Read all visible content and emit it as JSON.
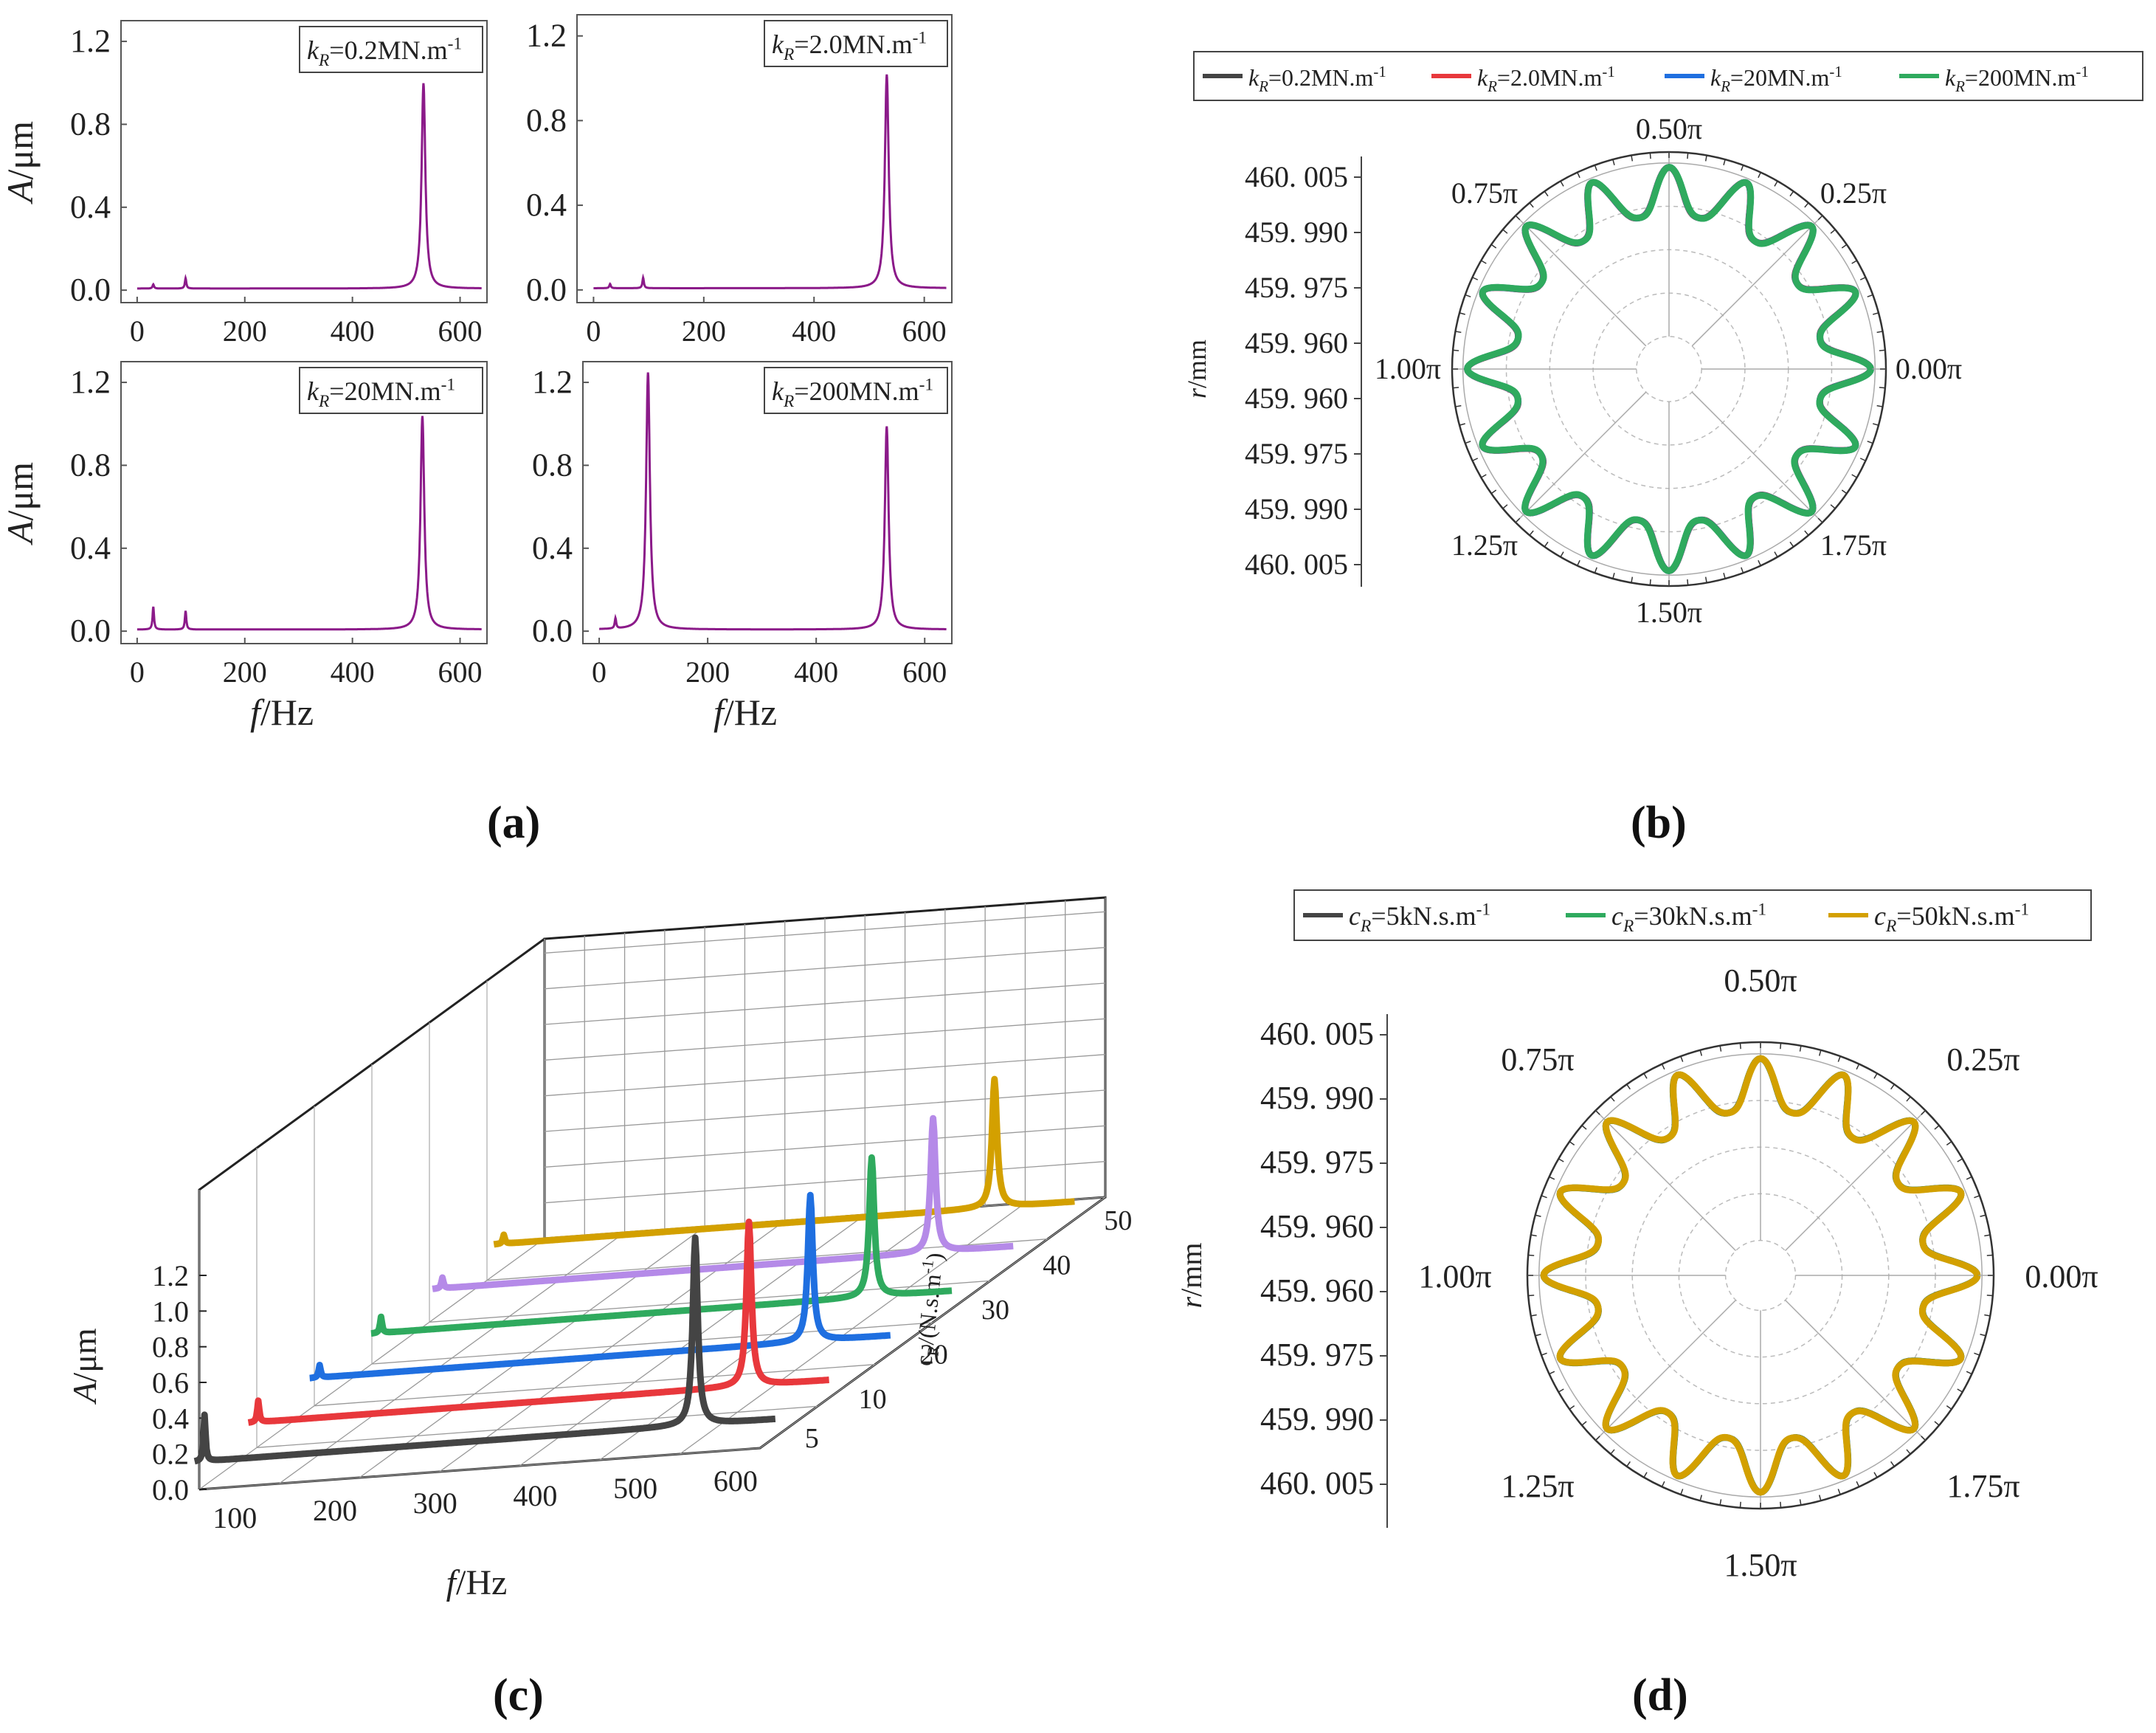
{
  "panels": {
    "a": "(a)",
    "b": "(b)",
    "c": "(c)",
    "d": "(d)"
  },
  "colors": {
    "purple": "#8B1A89",
    "black": "#444444",
    "red": "#E8383C",
    "blue": "#1F6FE0",
    "green": "#2FAA5E",
    "lilac": "#B58AE8",
    "gold": "#D3A000"
  },
  "chart_data": [
    {
      "id": "a1",
      "type": "line",
      "legend": "k_R=0.2MN.m^-1",
      "leg_sub": "R",
      "leg_main": "=0.2MN.m",
      "ylabel": "A/μm",
      "xlabel": "",
      "xlim": [
        -30,
        650
      ],
      "ylim": [
        -0.06,
        1.3
      ],
      "xticks": [
        0,
        200,
        400,
        600
      ],
      "yticks": [
        0.0,
        0.4,
        0.8,
        1.2
      ],
      "ytick_labels": [
        "0.0",
        "0.4",
        "0.8",
        "1.2"
      ],
      "peaks": [
        {
          "f": 30,
          "a": 0.02
        },
        {
          "f": 90,
          "a": 0.05
        },
        {
          "f": 532,
          "a": 0.99
        }
      ]
    },
    {
      "id": "a2",
      "type": "line",
      "legend": "k_R=2.0MN.m^-1",
      "leg_sub": "R",
      "leg_main": "=2.0MN.m",
      "ylabel": "",
      "xlabel": "",
      "xlim": [
        -30,
        650
      ],
      "ylim": [
        -0.06,
        1.3
      ],
      "xticks": [
        0,
        200,
        400,
        600
      ],
      "yticks": [
        0.0,
        0.4,
        0.8,
        1.2
      ],
      "ytick_labels": [
        "0.0",
        "0.4",
        "0.8",
        "1.2"
      ],
      "peaks": [
        {
          "f": 30,
          "a": 0.02
        },
        {
          "f": 90,
          "a": 0.05
        },
        {
          "f": 532,
          "a": 1.01
        }
      ]
    },
    {
      "id": "a3",
      "type": "line",
      "legend": "k_R=20MN.m^-1",
      "leg_sub": "R",
      "leg_main": "=20MN.m",
      "ylabel": "A/μm",
      "xlabel": "f/Hz",
      "xlim": [
        -30,
        650
      ],
      "ylim": [
        -0.06,
        1.3
      ],
      "xticks": [
        0,
        200,
        400,
        600
      ],
      "yticks": [
        0.0,
        0.4,
        0.8,
        1.2
      ],
      "ytick_labels": [
        "0.0",
        "0.4",
        "0.8",
        "1.2"
      ],
      "peaks": [
        {
          "f": 30,
          "a": 0.11
        },
        {
          "f": 90,
          "a": 0.09
        },
        {
          "f": 530,
          "a": 1.03
        }
      ]
    },
    {
      "id": "a4",
      "type": "line",
      "legend": "k_R=200MN.m^-1",
      "leg_sub": "R",
      "leg_main": "=200MN.m",
      "ylabel": "",
      "xlabel": "f/Hz",
      "xlim": [
        -30,
        650
      ],
      "ylim": [
        -0.06,
        1.3
      ],
      "xticks": [
        0,
        200,
        400,
        600
      ],
      "yticks": [
        0.0,
        0.4,
        0.8,
        1.2
      ],
      "ytick_labels": [
        "0.0",
        "0.4",
        "0.8",
        "1.2"
      ],
      "peaks": [
        {
          "f": 30,
          "a": 0.05
        },
        {
          "f": 90,
          "a": 1.24
        },
        {
          "f": 530,
          "a": 0.98
        }
      ]
    },
    {
      "id": "b",
      "type": "polar",
      "ylabel": "r/mm",
      "legend": [
        {
          "sub": "R",
          "main": "=0.2MN.m",
          "prefix": "k",
          "color": "#444444"
        },
        {
          "sub": "R",
          "main": "=2.0MN.m",
          "prefix": "k",
          "color": "#E8383C"
        },
        {
          "sub": "R",
          "main": "=20MN.m",
          "prefix": "k",
          "color": "#1F6FE0"
        },
        {
          "sub": "R",
          "main": "=200MN.m",
          "prefix": "k",
          "color": "#2FAA5E"
        }
      ],
      "r_tick_labels": [
        "460. 005",
        "459. 990",
        "459. 975",
        "459. 960",
        "459. 960",
        "459. 975",
        "459. 990",
        "460. 005"
      ],
      "angle_labels": [
        "0.00π",
        "0.25π",
        "0.50π",
        "0.75π",
        "1.00π",
        "1.25π",
        "1.50π",
        "1.75π"
      ],
      "lobes": 16
    },
    {
      "id": "c",
      "type": "3d-line",
      "ylabel": "A/μm",
      "xlabel": "f/Hz",
      "zlabel": "c_R/(N.s.m^-1)",
      "z_label_main": "c",
      "z_label_sub": "R",
      "z_label_rest": "/(N.s.m",
      "z_label_sup": "-1",
      "z_label_close": ")",
      "xticks": [
        100,
        200,
        300,
        400,
        500,
        600
      ],
      "yticks": [
        0.0,
        0.2,
        0.4,
        0.6,
        0.8,
        1.0,
        1.2
      ],
      "ytick_labels": [
        "0.0",
        "0.2",
        "0.4",
        "0.6",
        "0.8",
        "1.0",
        "1.2"
      ],
      "zticks": [
        "5",
        "10",
        "20",
        "30",
        "40",
        "50"
      ],
      "series": [
        {
          "c": 5,
          "color": "#444444",
          "peaks": [
            {
              "f": 50,
              "a": 0.26
            },
            {
              "f": 540,
              "a": 1.05
            }
          ]
        },
        {
          "c": 10,
          "color": "#E8383C",
          "peaks": [
            {
              "f": 50,
              "a": 0.12
            },
            {
              "f": 540,
              "a": 0.92
            }
          ]
        },
        {
          "c": 20,
          "color": "#1F6FE0",
          "peaks": [
            {
              "f": 50,
              "a": 0.07
            },
            {
              "f": 540,
              "a": 0.82
            }
          ]
        },
        {
          "c": 30,
          "color": "#2FAA5E",
          "peaks": [
            {
              "f": 50,
              "a": 0.09
            },
            {
              "f": 540,
              "a": 0.78
            }
          ]
        },
        {
          "c": 40,
          "color": "#B58AE8",
          "peaks": [
            {
              "f": 50,
              "a": 0.06
            },
            {
              "f": 540,
              "a": 0.75
            }
          ]
        },
        {
          "c": 50,
          "color": "#D3A000",
          "peaks": [
            {
              "f": 50,
              "a": 0.05
            },
            {
              "f": 540,
              "a": 0.72
            }
          ]
        }
      ]
    },
    {
      "id": "d",
      "type": "polar",
      "ylabel": "r/mm",
      "legend": [
        {
          "sub": "R",
          "main": "=5kN.s.m",
          "prefix": "c",
          "color": "#444444"
        },
        {
          "sub": "R",
          "main": "=30kN.s.m",
          "prefix": "c",
          "color": "#2FAA5E"
        },
        {
          "sub": "R",
          "main": "=50kN.s.m",
          "prefix": "c",
          "color": "#D3A000"
        }
      ],
      "r_tick_labels": [
        "460. 005",
        "459. 990",
        "459. 975",
        "459. 960",
        "459. 960",
        "459. 975",
        "459. 990",
        "460. 005"
      ],
      "angle_labels": [
        "0.00π",
        "0.25π",
        "0.50π",
        "0.75π",
        "1.00π",
        "1.25π",
        "1.50π",
        "1.75π"
      ],
      "lobes": 16
    }
  ]
}
